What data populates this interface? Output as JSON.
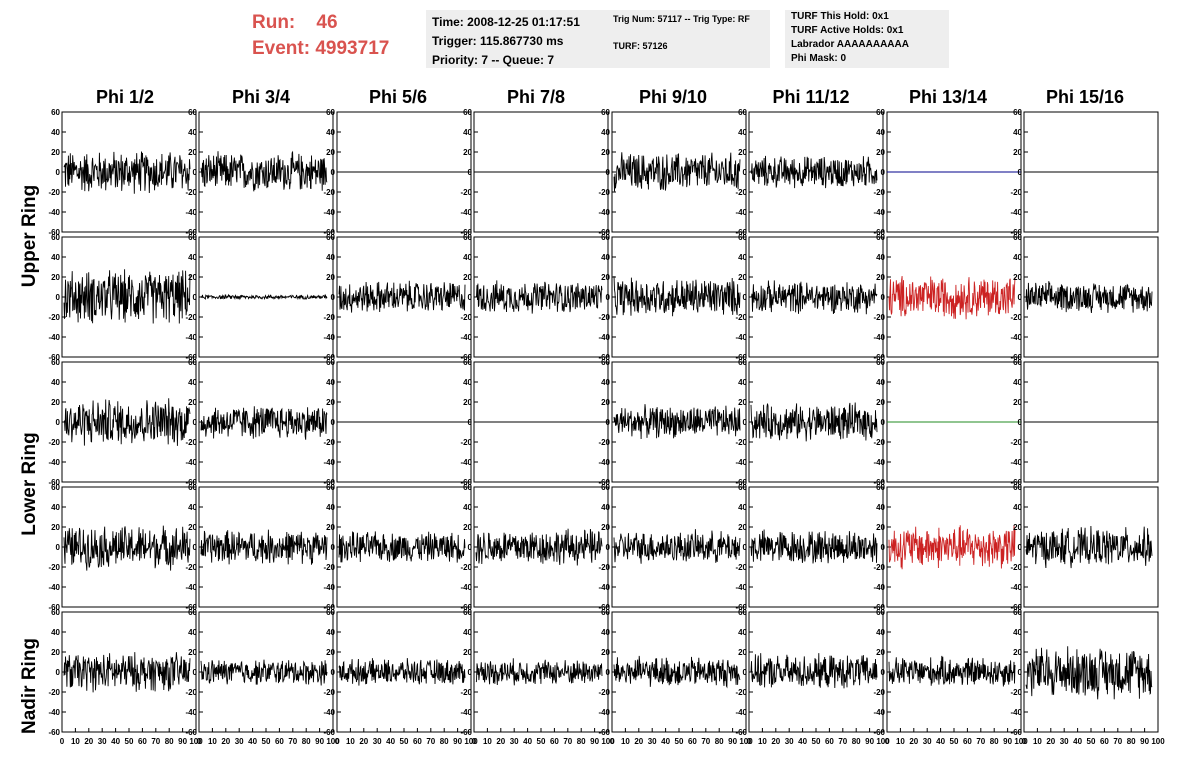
{
  "header": {
    "run_label": "Run:",
    "run_value": "46",
    "event_label": "Event:",
    "event_value": "4993717",
    "time": "Time: 2008-12-25 01:17:51",
    "trigger": "Trigger: 115.867730 ms",
    "priority": "Priority: 7 -- Queue: 7",
    "trig_num": "Trig Num: 57117 -- Trig Type: RF",
    "turf": "TURF: 57126",
    "turf_this_hold": "TURF This Hold: 0x1",
    "turf_active_holds": "TURF Active Holds: 0x1",
    "labrador": "Labrador AAAAAAAAAA",
    "phi_mask": "Phi Mask: 0"
  },
  "columns": [
    "Phi 1/2",
    "Phi 3/4",
    "Phi 5/6",
    "Phi 7/8",
    "Phi 9/10",
    "Phi 11/12",
    "Phi 13/14",
    "Phi 15/16"
  ],
  "rings": [
    "Upper Ring",
    "Lower Ring",
    "Nadir Ring"
  ],
  "chart_data": {
    "type": "line",
    "grid": false,
    "x_ticks": [
      "0",
      "10",
      "20",
      "30",
      "40",
      "50",
      "60",
      "70",
      "80",
      "90",
      "100"
    ],
    "y_ticks": [
      "-60",
      "-40",
      "-20",
      "0",
      "20",
      "40",
      "60"
    ],
    "xlim": [
      0,
      100
    ],
    "ylim": [
      -60,
      60
    ],
    "rows": [
      {
        "amplitudes": [
          20,
          18,
          0,
          0,
          18,
          15,
          0,
          0
        ],
        "colors": [
          "#000000",
          "#000000",
          "#000000",
          "#000000",
          "#000000",
          "#000000",
          "#00008b",
          "#000000"
        ]
      },
      {
        "amplitudes": [
          25,
          2,
          15,
          15,
          18,
          15,
          20,
          14
        ],
        "colors": [
          "#000000",
          "#000000",
          "#000000",
          "#000000",
          "#000000",
          "#000000",
          "#cc2222",
          "#000000"
        ]
      },
      {
        "amplitudes": [
          22,
          16,
          0,
          0,
          15,
          17,
          0,
          0
        ],
        "colors": [
          "#000000",
          "#000000",
          "#000000",
          "#000000",
          "#000000",
          "#000000",
          "#228b22",
          "#000000"
        ]
      },
      {
        "amplitudes": [
          20,
          16,
          14,
          17,
          15,
          16,
          20,
          18
        ],
        "colors": [
          "#000000",
          "#000000",
          "#000000",
          "#000000",
          "#000000",
          "#000000",
          "#cc2222",
          "#000000"
        ]
      },
      {
        "amplitudes": [
          18,
          12,
          12,
          12,
          14,
          16,
          14,
          24
        ],
        "colors": [
          "#000000",
          "#000000",
          "#000000",
          "#000000",
          "#000000",
          "#000000",
          "#000000",
          "#000000"
        ]
      }
    ]
  }
}
